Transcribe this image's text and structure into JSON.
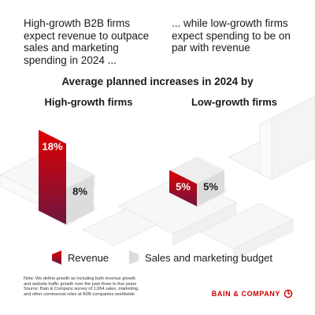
{
  "header": {
    "left_text": "High-growth B2B firms expect revenue to outpace sales and marketing spending in 2024 ...",
    "right_text": "... while low-growth firms expect spending to be on par with revenue"
  },
  "chart_data": {
    "type": "bar",
    "title": "Average planned increases in 2024 by",
    "categories": [
      "High-growth firms",
      "Low-growth firms"
    ],
    "series": [
      {
        "name": "Revenue",
        "values": [
          18,
          5
        ]
      },
      {
        "name": "Sales and marketing budget",
        "values": [
          8,
          5
        ]
      }
    ],
    "value_labels": [
      [
        "18%",
        "5%"
      ],
      [
        "8%",
        "5%"
      ]
    ],
    "unit": "%",
    "legend_position": "bottom",
    "colors": {
      "revenue": "#cc0000",
      "revenue_dark": "#7a1236",
      "budget": "#dcdcdc",
      "budget_side": "#b9b9b9"
    }
  },
  "notes": {
    "lines": [
      "Note: We define growth as including both revenue growth",
      "and website traffic growth over the past three to five years",
      "Source: Bain & Company survey of 1,064 sales, marketing,",
      "and other commercial roles at B2B companies worldwide"
    ]
  },
  "brand": {
    "name": "BAIN & COMPANY",
    "icon": "bain-logo-icon"
  }
}
